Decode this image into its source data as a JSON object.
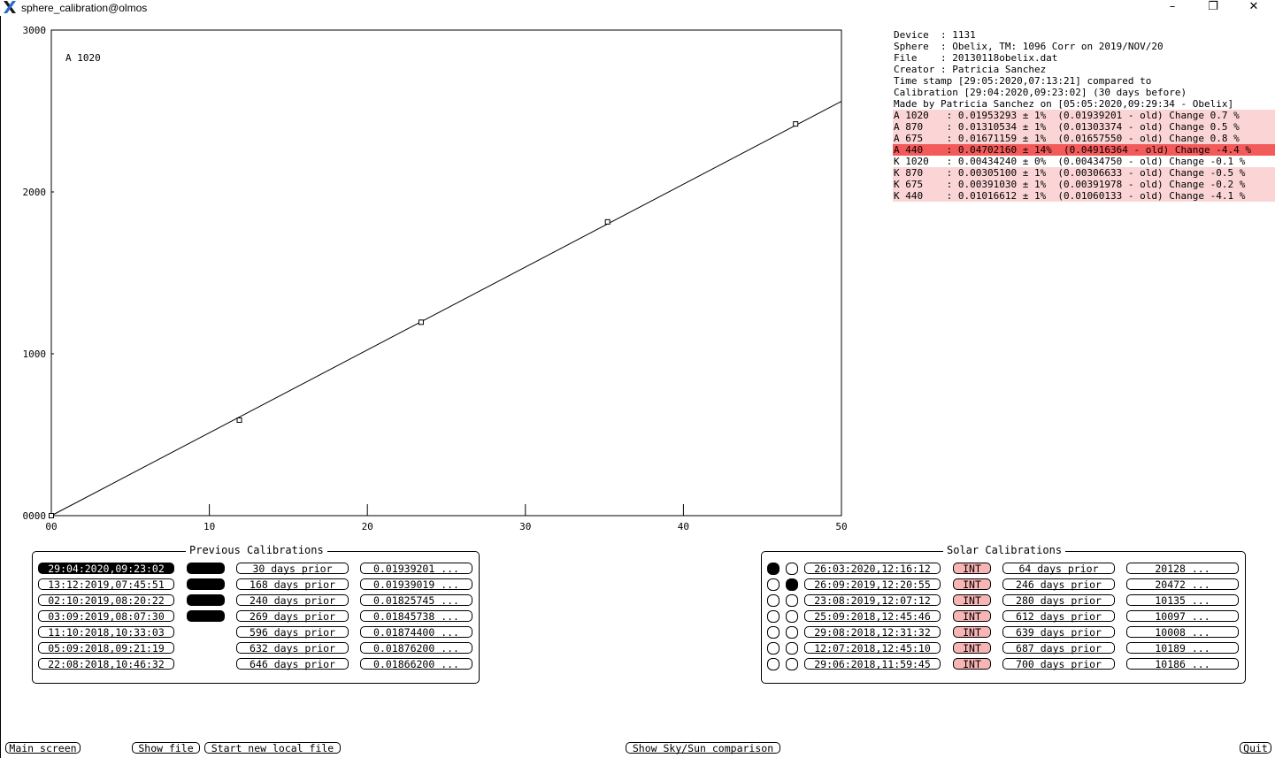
{
  "window": {
    "title": "sphere_calibration@olmos",
    "minimize_glyph": "–",
    "restore_glyph": "❐",
    "close_glyph": "✕"
  },
  "plot": {
    "label": "A 1020",
    "y_ticks": [
      "3000",
      "2000",
      "1000",
      "0000"
    ],
    "x_ticks": [
      "00",
      "10",
      "20",
      "30",
      "40",
      "50"
    ]
  },
  "chart_data": {
    "type": "scatter",
    "title": "A 1020",
    "xlabel": "",
    "ylabel": "",
    "xlim": [
      0,
      50
    ],
    "ylim": [
      0,
      3000
    ],
    "x_tick_labels": [
      "00",
      "10",
      "20",
      "30",
      "40",
      "50"
    ],
    "y_tick_labels": [
      "0000",
      "1000",
      "2000",
      "3000"
    ],
    "grid": false,
    "points": [
      {
        "x": 0.0,
        "y": 0
      },
      {
        "x": 11.9,
        "y": 590
      },
      {
        "x": 23.4,
        "y": 1195
      },
      {
        "x": 35.2,
        "y": 1815
      },
      {
        "x": 47.1,
        "y": 2420
      }
    ],
    "fit_line": {
      "x": [
        0,
        50
      ],
      "y": [
        0,
        2560
      ]
    }
  },
  "info": {
    "lines": [
      {
        "text": "Device  : 1131",
        "hl": ""
      },
      {
        "text": "Sphere  : Obelix, TM: 1096 Corr on 2019/NOV/20",
        "hl": ""
      },
      {
        "text": "File    : 20130118obelix.dat",
        "hl": ""
      },
      {
        "text": "Creator : Patricia Sanchez",
        "hl": ""
      },
      {
        "text": "Time stamp [29:05:2020,07:13:21] compared to",
        "hl": ""
      },
      {
        "text": "Calibration [29:04:2020,09:23:02] (30 days before)",
        "hl": ""
      },
      {
        "text": "Made by Patricia Sanchez on [05:05:2020,09:29:34 - Obelix]",
        "hl": ""
      },
      {
        "text": "A 1020   : 0.01953293 ± 1%  (0.01939201 - old) Change 0.7 %",
        "hl": "light"
      },
      {
        "text": "A 870    : 0.01310534 ± 1%  (0.01303374 - old) Change 0.5 %",
        "hl": "light"
      },
      {
        "text": "A 675    : 0.01671159 ± 1%  (0.01657550 - old) Change 0.8 %",
        "hl": "light"
      },
      {
        "text": "A 440    : 0.04702160 ± 14%  (0.04916364 - old) Change -4.4 %",
        "hl": "strong"
      },
      {
        "text": "K 1020   : 0.00434240 ± 0%  (0.00434750 - old) Change -0.1 %",
        "hl": ""
      },
      {
        "text": "K 870    : 0.00305100 ± 1%  (0.00306633 - old) Change -0.5 %",
        "hl": "light"
      },
      {
        "text": "K 675    : 0.00391030 ± 1%  (0.00391978 - old) Change -0.2 %",
        "hl": "light"
      },
      {
        "text": "K 440    : 0.01016612 ± 1%  (0.01060133 - old) Change -4.1 %",
        "hl": "light"
      }
    ]
  },
  "previous": {
    "title": "Previous Calibrations",
    "rows": [
      {
        "date": "29:04:2020,09:23:02",
        "selected": true,
        "marker": true,
        "prior": "30 days prior",
        "value": "0.01939201 ..."
      },
      {
        "date": "13:12:2019,07:45:51",
        "selected": false,
        "marker": true,
        "prior": "168 days prior",
        "value": "0.01939019 ..."
      },
      {
        "date": "02:10:2019,08:20:22",
        "selected": false,
        "marker": true,
        "prior": "240 days prior",
        "value": "0.01825745 ..."
      },
      {
        "date": "03:09:2019,08:07:30",
        "selected": false,
        "marker": true,
        "prior": "269 days prior",
        "value": "0.01845738 ..."
      },
      {
        "date": "11:10:2018,10:33:03",
        "selected": false,
        "marker": false,
        "prior": "596 days prior",
        "value": "0.01874400 ..."
      },
      {
        "date": "05:09:2018,09:21:19",
        "selected": false,
        "marker": false,
        "prior": "632 days prior",
        "value": "0.01876200 ..."
      },
      {
        "date": "22:08:2018,10:46:32",
        "selected": false,
        "marker": false,
        "prior": "646 days prior",
        "value": "0.01866200 ..."
      }
    ]
  },
  "solar": {
    "title": "Solar Calibrations",
    "rows": [
      {
        "dot1": true,
        "dot2": false,
        "date": "26:03:2020,12:16:12",
        "int": "INT",
        "prior": "64 days prior",
        "value": "20128 ..."
      },
      {
        "dot1": false,
        "dot2": true,
        "date": "26:09:2019,12:20:55",
        "int": "INT",
        "prior": "246 days prior",
        "value": "20472 ..."
      },
      {
        "dot1": false,
        "dot2": false,
        "date": "23:08:2019,12:07:12",
        "int": "INT",
        "prior": "280 days prior",
        "value": "10135 ..."
      },
      {
        "dot1": false,
        "dot2": false,
        "date": "25:09:2018,12:45:46",
        "int": "INT",
        "prior": "612 days prior",
        "value": "10097 ..."
      },
      {
        "dot1": false,
        "dot2": false,
        "date": "29:08:2018,12:31:32",
        "int": "INT",
        "prior": "639 days prior",
        "value": "10008 ..."
      },
      {
        "dot1": false,
        "dot2": false,
        "date": "12:07:2018,12:45:10",
        "int": "INT",
        "prior": "687 days prior",
        "value": "10189 ..."
      },
      {
        "dot1": false,
        "dot2": false,
        "date": "29:06:2018,11:59:45",
        "int": "INT",
        "prior": "700 days prior",
        "value": "10186 ..."
      }
    ]
  },
  "buttons": {
    "main_screen": "Main screen",
    "show_file": "Show file",
    "start_new_local_file": "Start new local file",
    "show_sky_sun": "Show Sky/Sun comparison",
    "quit": "Quit"
  },
  "colors": {
    "highlight_light": "#fbd5d5",
    "highlight_strong": "#f35a5a",
    "int_button": "#f9b4b4"
  }
}
